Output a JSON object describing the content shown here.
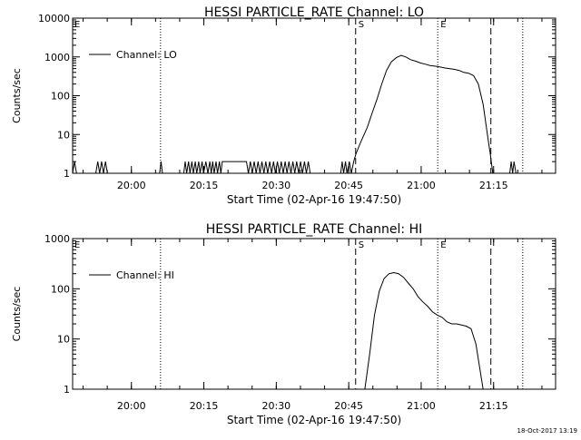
{
  "timestamp": "18-Oct-2017 13:19",
  "chart_data": [
    {
      "type": "line",
      "title": "HESSI PARTICLE_RATE Channel: LO",
      "xlabel": "Start Time (02-Apr-16 19:47:50)",
      "ylabel": "Counts/sec",
      "yscale": "log",
      "ylim": [
        1,
        10000
      ],
      "xlim_minutes": [
        0,
        100
      ],
      "y_ticks": [
        {
          "value": 1,
          "label": "1"
        },
        {
          "value": 10,
          "label": "10"
        },
        {
          "value": 100,
          "label": "100"
        },
        {
          "value": 1000,
          "label": "1000"
        },
        {
          "value": 10000,
          "label": "10000"
        }
      ],
      "x_ticks": [
        {
          "minutes": 12.17,
          "label": "20:00"
        },
        {
          "minutes": 27.17,
          "label": "20:15"
        },
        {
          "minutes": 42.17,
          "label": "20:30"
        },
        {
          "minutes": 57.17,
          "label": "20:45"
        },
        {
          "minutes": 72.17,
          "label": "21:00"
        },
        {
          "minutes": 87.17,
          "label": "21:15"
        }
      ],
      "legend": {
        "label": "Channel: LO",
        "placement": "top-left"
      },
      "markers": [
        {
          "minutes": 18.2,
          "style": "dotted",
          "label": ""
        },
        {
          "minutes": 58.6,
          "style": "dashed",
          "label": "S"
        },
        {
          "minutes": 75.6,
          "style": "dotted",
          "label": "E"
        },
        {
          "minutes": 86.6,
          "style": "dashed",
          "label": ""
        },
        {
          "minutes": 93.2,
          "style": "dotted",
          "label": ""
        }
      ],
      "corner_marker": "E",
      "series": [
        {
          "name": "Channel: LO",
          "points": [
            [
              0,
              1
            ],
            [
              0.4,
              2
            ],
            [
              0.8,
              1
            ],
            [
              4.8,
              1
            ],
            [
              5.2,
              2
            ],
            [
              5.6,
              1
            ],
            [
              6,
              2
            ],
            [
              6.4,
              1
            ],
            [
              6.8,
              2
            ],
            [
              7.2,
              1
            ],
            [
              18,
              1
            ],
            [
              18.3,
              2
            ],
            [
              18.6,
              1
            ],
            [
              23,
              1
            ],
            [
              23.3,
              2
            ],
            [
              23.6,
              1
            ],
            [
              24,
              2
            ],
            [
              24.3,
              1
            ],
            [
              24.7,
              2
            ],
            [
              25,
              1
            ],
            [
              25.4,
              2
            ],
            [
              25.7,
              1
            ],
            [
              26.1,
              2
            ],
            [
              26.4,
              1
            ],
            [
              26.8,
              2
            ],
            [
              27.1,
              1
            ],
            [
              27.6,
              2
            ],
            [
              28,
              1
            ],
            [
              28.4,
              2
            ],
            [
              28.7,
              1
            ],
            [
              29,
              2
            ],
            [
              29.3,
              1
            ],
            [
              29.7,
              2
            ],
            [
              30,
              1
            ],
            [
              30.4,
              2
            ],
            [
              30.7,
              1
            ],
            [
              31,
              2
            ],
            [
              31.5,
              2
            ],
            [
              32,
              2
            ],
            [
              32.5,
              2
            ],
            [
              33,
              2
            ],
            [
              33.5,
              2
            ],
            [
              34,
              2
            ],
            [
              34.5,
              2
            ],
            [
              35,
              2
            ],
            [
              35.5,
              2
            ],
            [
              36,
              2
            ],
            [
              36.4,
              1
            ],
            [
              36.8,
              2
            ],
            [
              37.2,
              1
            ],
            [
              37.6,
              2
            ],
            [
              38,
              1
            ],
            [
              38.4,
              2
            ],
            [
              38.8,
              1
            ],
            [
              39.2,
              2
            ],
            [
              39.6,
              1
            ],
            [
              40,
              2
            ],
            [
              40.4,
              1
            ],
            [
              40.8,
              2
            ],
            [
              41.2,
              1
            ],
            [
              41.6,
              2
            ],
            [
              42,
              1
            ],
            [
              42.4,
              2
            ],
            [
              42.8,
              1
            ],
            [
              43.2,
              2
            ],
            [
              43.6,
              1
            ],
            [
              44,
              2
            ],
            [
              44.4,
              1
            ],
            [
              44.8,
              2
            ],
            [
              45.2,
              1
            ],
            [
              45.6,
              2
            ],
            [
              46,
              1
            ],
            [
              46.4,
              2
            ],
            [
              46.8,
              1
            ],
            [
              47.2,
              2
            ],
            [
              47.6,
              1
            ],
            [
              48,
              2
            ],
            [
              48.4,
              1
            ],
            [
              48.8,
              2
            ],
            [
              49.2,
              1
            ],
            [
              55.5,
              1
            ],
            [
              55.8,
              2
            ],
            [
              56.1,
              1
            ],
            [
              56.5,
              2
            ],
            [
              56.8,
              1
            ],
            [
              57.3,
              2
            ],
            [
              57.7,
              1
            ],
            [
              58.2,
              2
            ],
            [
              58.6,
              3
            ],
            [
              59.3,
              5
            ],
            [
              60,
              8
            ],
            [
              61,
              15
            ],
            [
              62,
              35
            ],
            [
              63,
              80
            ],
            [
              64,
              200
            ],
            [
              65,
              450
            ],
            [
              66,
              750
            ],
            [
              67,
              950
            ],
            [
              68,
              1100
            ],
            [
              69,
              1000
            ],
            [
              70,
              850
            ],
            [
              71,
              780
            ],
            [
              72,
              700
            ],
            [
              73,
              650
            ],
            [
              74,
              600
            ],
            [
              75,
              580
            ],
            [
              76,
              550
            ],
            [
              77,
              520
            ],
            [
              78,
              500
            ],
            [
              79,
              480
            ],
            [
              80,
              450
            ],
            [
              81,
              400
            ],
            [
              82,
              380
            ],
            [
              83,
              330
            ],
            [
              84,
              200
            ],
            [
              85,
              60
            ],
            [
              86,
              8
            ],
            [
              86.5,
              3
            ],
            [
              87,
              1
            ],
            [
              90.5,
              1
            ],
            [
              90.8,
              2
            ],
            [
              91.1,
              1
            ],
            [
              91.4,
              2
            ],
            [
              91.8,
              1
            ]
          ]
        }
      ]
    },
    {
      "type": "line",
      "title": "HESSI PARTICLE_RATE Channel: HI",
      "xlabel": "Start Time (02-Apr-16 19:47:50)",
      "ylabel": "Counts/sec",
      "yscale": "log",
      "ylim": [
        1,
        1000
      ],
      "xlim_minutes": [
        0,
        100
      ],
      "y_ticks": [
        {
          "value": 1,
          "label": "1"
        },
        {
          "value": 10,
          "label": "10"
        },
        {
          "value": 100,
          "label": "100"
        },
        {
          "value": 1000,
          "label": "1000"
        }
      ],
      "x_ticks": [
        {
          "minutes": 12.17,
          "label": "20:00"
        },
        {
          "minutes": 27.17,
          "label": "20:15"
        },
        {
          "minutes": 42.17,
          "label": "20:30"
        },
        {
          "minutes": 57.17,
          "label": "20:45"
        },
        {
          "minutes": 72.17,
          "label": "21:00"
        },
        {
          "minutes": 87.17,
          "label": "21:15"
        }
      ],
      "legend": {
        "label": "Channel: HI",
        "placement": "top-left"
      },
      "markers": [
        {
          "minutes": 18.2,
          "style": "dotted",
          "label": ""
        },
        {
          "minutes": 58.6,
          "style": "dashed",
          "label": "S"
        },
        {
          "minutes": 75.6,
          "style": "dotted",
          "label": "E"
        },
        {
          "minutes": 86.6,
          "style": "dashed",
          "label": ""
        },
        {
          "minutes": 93.2,
          "style": "dotted",
          "label": ""
        }
      ],
      "corner_marker": "E",
      "series": [
        {
          "name": "Channel: HI",
          "points": [
            [
              60.5,
              1
            ],
            [
              61.5,
              5
            ],
            [
              62.5,
              30
            ],
            [
              63.5,
              90
            ],
            [
              64.5,
              160
            ],
            [
              65.5,
              200
            ],
            [
              66.5,
              210
            ],
            [
              67.5,
              200
            ],
            [
              68.5,
              170
            ],
            [
              69.5,
              130
            ],
            [
              70.5,
              100
            ],
            [
              71.5,
              70
            ],
            [
              72.5,
              55
            ],
            [
              73.5,
              45
            ],
            [
              74.5,
              35
            ],
            [
              75.5,
              30
            ],
            [
              76.5,
              27
            ],
            [
              77.5,
              22
            ],
            [
              78.5,
              20
            ],
            [
              79.5,
              20
            ],
            [
              80.5,
              19
            ],
            [
              81.5,
              18
            ],
            [
              82.5,
              16
            ],
            [
              83.5,
              8
            ],
            [
              84.5,
              2
            ],
            [
              85,
              1
            ]
          ]
        }
      ]
    }
  ]
}
